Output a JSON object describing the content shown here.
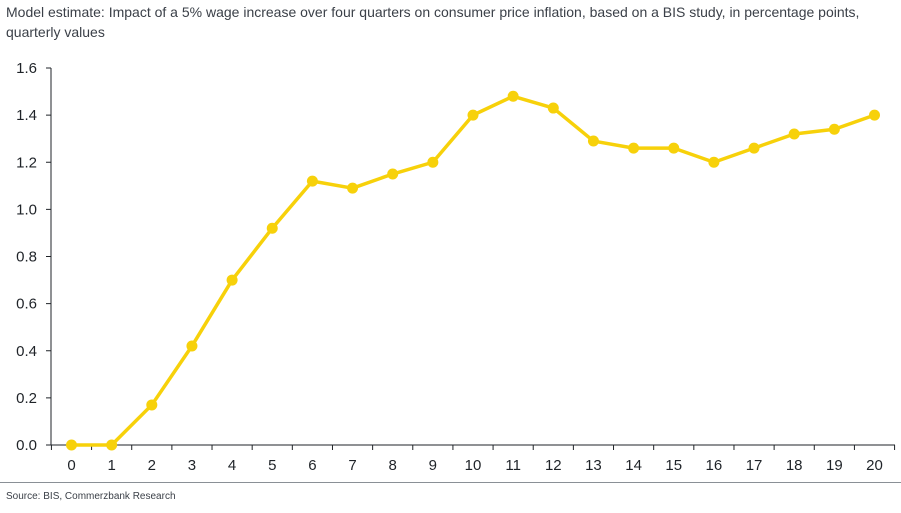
{
  "header": {
    "title": "Model estimate: Impact of a 5% wage increase over four quarters on consumer price inflation, based on a BIS study, in percentage points, quarterly values"
  },
  "footer": {
    "source": "Source: BIS, Commerzbank Research"
  },
  "chart_data": {
    "type": "line",
    "title": "Model estimate: Impact of a 5% wage increase over four quarters on consumer price inflation, based on a BIS study, in percentage points, quarterly values",
    "xlabel": "",
    "ylabel": "",
    "x": [
      0,
      1,
      2,
      3,
      4,
      5,
      6,
      7,
      8,
      9,
      10,
      11,
      12,
      13,
      14,
      15,
      16,
      17,
      18,
      19,
      20
    ],
    "series": [
      {
        "color": "#f7d10a",
        "values": [
          0.0,
          0.0,
          0.17,
          0.42,
          0.7,
          0.92,
          1.12,
          1.09,
          1.15,
          1.2,
          1.4,
          1.48,
          1.43,
          1.29,
          1.26,
          1.26,
          1.2,
          1.26,
          1.32,
          1.34,
          1.4
        ]
      }
    ],
    "ylim": [
      0.0,
      1.6
    ],
    "yticks": [
      "0.0",
      "0.2",
      "0.4",
      "0.6",
      "0.8",
      "1.0",
      "1.2",
      "1.4",
      "1.6"
    ],
    "xticks": [
      "0",
      "1",
      "2",
      "3",
      "4",
      "5",
      "6",
      "7",
      "8",
      "9",
      "10",
      "11",
      "12",
      "13",
      "14",
      "15",
      "16",
      "17",
      "18",
      "19",
      "20"
    ],
    "grid": false,
    "legend": "none",
    "axis_color": "#1f2328"
  }
}
